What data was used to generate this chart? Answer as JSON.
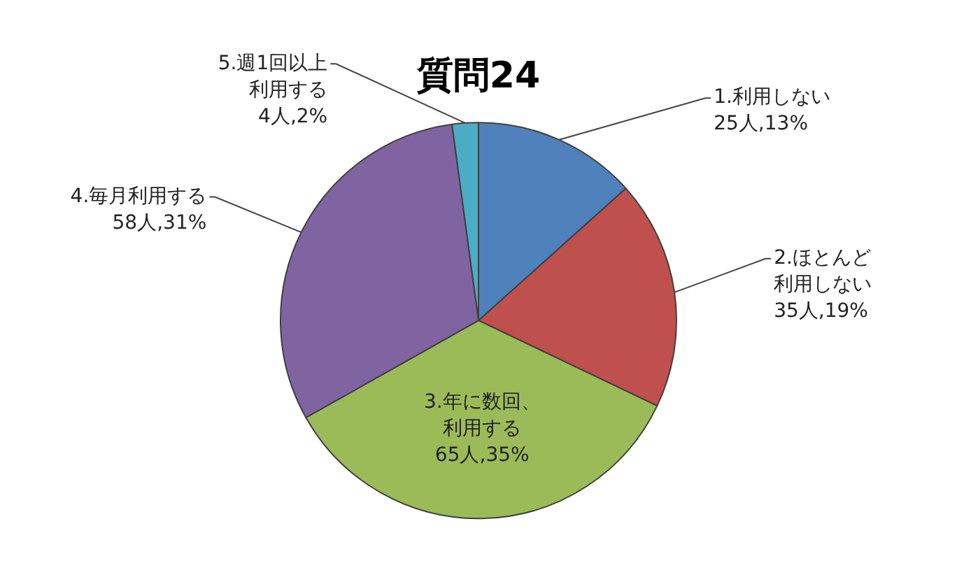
{
  "chart_data": {
    "type": "pie",
    "title": "質問24",
    "legend": false,
    "categories": [
      "1.利用しない",
      "2.ほとんど利用しない",
      "3.年に数回、利用する",
      "4.毎月利用する",
      "5.週1回以上利用する"
    ],
    "values": [
      25,
      35,
      65,
      58,
      4
    ],
    "value_labels": [
      "25人,13%",
      "35人,19%",
      "65人,35%",
      "58人,31%",
      "4人,2%"
    ],
    "colors": [
      "#4f81bd",
      "#c0504d",
      "#9bbb59",
      "#8064a2",
      "#4bacc6"
    ]
  }
}
